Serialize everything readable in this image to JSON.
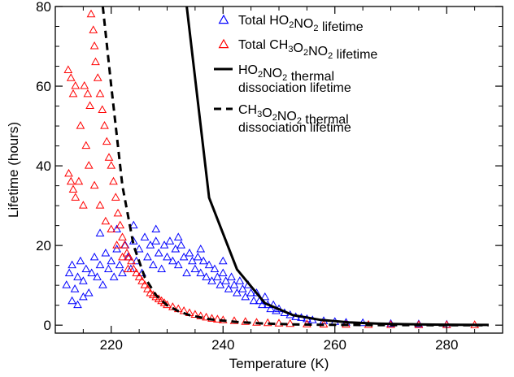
{
  "chart_data": {
    "type": "scatter",
    "xlabel": "Temperature (K)",
    "ylabel": "Lifetime (hours)",
    "xlim": [
      210,
      290
    ],
    "ylim": [
      -2,
      80
    ],
    "xticks": [
      220,
      240,
      260,
      280
    ],
    "yticks": [
      0,
      20,
      40,
      60,
      80
    ],
    "grid": false,
    "legend_position": "top-right",
    "series": [
      {
        "name": "Total HO2NO2 lifetime",
        "legend_parts": [
          [
            "Total HO",
            ""
          ],
          [
            "2",
            "sub"
          ],
          [
            "NO",
            ""
          ],
          [
            "2",
            "sub"
          ],
          [
            " lifetime",
            ""
          ]
        ],
        "kind": "scatter",
        "marker": "triangle",
        "color": "#0000ff",
        "points": [
          [
            212.0,
            10
          ],
          [
            212.5,
            13
          ],
          [
            213.0,
            15
          ],
          [
            213.5,
            9
          ],
          [
            214.0,
            12
          ],
          [
            214.5,
            16
          ],
          [
            215.0,
            11
          ],
          [
            215.5,
            14
          ],
          [
            216.0,
            8
          ],
          [
            216.5,
            13
          ],
          [
            217.0,
            17
          ],
          [
            217.5,
            12
          ],
          [
            218.0,
            15
          ],
          [
            218.5,
            10
          ],
          [
            219.0,
            18
          ],
          [
            219.5,
            14
          ],
          [
            220.0,
            16
          ],
          [
            220.5,
            12
          ],
          [
            221.0,
            19
          ],
          [
            221.5,
            15
          ],
          [
            222.0,
            13
          ],
          [
            222.5,
            20
          ],
          [
            223.0,
            17
          ],
          [
            223.5,
            14
          ],
          [
            224.0,
            21
          ],
          [
            224.5,
            16
          ],
          [
            225.0,
            19
          ],
          [
            225.5,
            13
          ],
          [
            226.0,
            22
          ],
          [
            226.5,
            17
          ],
          [
            227.0,
            20
          ],
          [
            227.5,
            15
          ],
          [
            228.0,
            21
          ],
          [
            228.5,
            18
          ],
          [
            229.0,
            14
          ],
          [
            229.5,
            20
          ],
          [
            230.0,
            17
          ],
          [
            230.5,
            21
          ],
          [
            231.0,
            16
          ],
          [
            231.5,
            19
          ],
          [
            232.0,
            15
          ],
          [
            232.5,
            20
          ],
          [
            233.0,
            17
          ],
          [
            233.5,
            13
          ],
          [
            234.0,
            18
          ],
          [
            234.5,
            16
          ],
          [
            235.0,
            14
          ],
          [
            235.5,
            17
          ],
          [
            236.0,
            13
          ],
          [
            236.5,
            16
          ],
          [
            237.0,
            12
          ],
          [
            237.5,
            15
          ],
          [
            238.0,
            11
          ],
          [
            238.5,
            14
          ],
          [
            239.0,
            12
          ],
          [
            239.5,
            10
          ],
          [
            240.0,
            13
          ],
          [
            240.5,
            11
          ],
          [
            241.0,
            9
          ],
          [
            241.5,
            12
          ],
          [
            242.0,
            10
          ],
          [
            242.5,
            8
          ],
          [
            243.0,
            11
          ],
          [
            243.5,
            9
          ],
          [
            244.0,
            7
          ],
          [
            244.5,
            10
          ],
          [
            245.0,
            8
          ],
          [
            245.5,
            6
          ],
          [
            246.0,
            8
          ],
          [
            246.5,
            6
          ],
          [
            247.0,
            5
          ],
          [
            247.5,
            7
          ],
          [
            248.0,
            5
          ],
          [
            248.5,
            4
          ],
          [
            249.0,
            5
          ],
          [
            249.5,
            3.5
          ],
          [
            250.0,
            4
          ],
          [
            251.0,
            3
          ],
          [
            252.0,
            2.5
          ],
          [
            253.0,
            2
          ],
          [
            254.0,
            1.8
          ],
          [
            255.0,
            1.5
          ],
          [
            256.0,
            1.2
          ],
          [
            258.0,
            1
          ],
          [
            260.0,
            0.8
          ],
          [
            262.0,
            0.6
          ],
          [
            265.0,
            0.5
          ],
          [
            270.0,
            0.3
          ],
          [
            275.0,
            0.2
          ],
          [
            280.0,
            0.1
          ],
          [
            213.0,
            6
          ],
          [
            214.0,
            5
          ],
          [
            215.0,
            7
          ],
          [
            218.0,
            23
          ],
          [
            221.0,
            24
          ],
          [
            224.0,
            25
          ],
          [
            228.0,
            24
          ],
          [
            232.0,
            22
          ],
          [
            236.0,
            19
          ],
          [
            240.0,
            16
          ]
        ]
      },
      {
        "name": "Total CH3O2NO2 lifetime",
        "legend_parts": [
          [
            "Total CH",
            ""
          ],
          [
            "3",
            "sub"
          ],
          [
            "O",
            ""
          ],
          [
            "2",
            "sub"
          ],
          [
            "NO",
            ""
          ],
          [
            "2",
            "sub"
          ],
          [
            " lifetime",
            ""
          ]
        ],
        "kind": "scatter",
        "marker": "triangle",
        "color": "#ff0000",
        "points": [
          [
            212.3,
            64
          ],
          [
            212.8,
            62
          ],
          [
            213.2,
            58
          ],
          [
            213.6,
            60
          ],
          [
            212.4,
            38
          ],
          [
            212.8,
            36
          ],
          [
            213.2,
            34
          ],
          [
            213.6,
            32
          ],
          [
            214.2,
            36
          ],
          [
            215.0,
            30
          ],
          [
            215.2,
            60
          ],
          [
            215.8,
            58
          ],
          [
            216.2,
            55
          ],
          [
            216.4,
            78
          ],
          [
            216.8,
            74
          ],
          [
            217.0,
            70
          ],
          [
            217.2,
            66
          ],
          [
            217.6,
            62
          ],
          [
            218.0,
            58
          ],
          [
            218.4,
            54
          ],
          [
            218.8,
            50
          ],
          [
            219.2,
            46
          ],
          [
            219.6,
            42
          ],
          [
            220.0,
            40
          ],
          [
            220.4,
            36
          ],
          [
            220.8,
            32
          ],
          [
            221.2,
            28
          ],
          [
            221.6,
            25
          ],
          [
            222.0,
            22
          ],
          [
            222.4,
            20
          ],
          [
            222.8,
            18
          ],
          [
            223.2,
            17
          ],
          [
            223.6,
            16
          ],
          [
            224.0,
            14
          ],
          [
            224.5,
            13
          ],
          [
            225.0,
            12
          ],
          [
            225.5,
            11
          ],
          [
            226.0,
            10
          ],
          [
            226.5,
            9
          ],
          [
            227.0,
            8
          ],
          [
            227.5,
            7.5
          ],
          [
            228.0,
            7
          ],
          [
            228.5,
            6.5
          ],
          [
            229.0,
            6
          ],
          [
            229.5,
            5.5
          ],
          [
            230.0,
            5
          ],
          [
            231.0,
            4.5
          ],
          [
            232.0,
            4
          ],
          [
            233.0,
            3.5
          ],
          [
            234.0,
            3
          ],
          [
            235.0,
            2.6
          ],
          [
            236.0,
            2.2
          ],
          [
            237.0,
            1.9
          ],
          [
            238.0,
            1.6
          ],
          [
            239.0,
            1.4
          ],
          [
            240.0,
            1.2
          ],
          [
            242.0,
            1
          ],
          [
            244.0,
            0.8
          ],
          [
            246.0,
            0.6
          ],
          [
            248.0,
            0.5
          ],
          [
            250.0,
            0.4
          ],
          [
            252.0,
            0.3
          ],
          [
            255.0,
            0.2
          ],
          [
            258.0,
            0.15
          ],
          [
            262.0,
            0.1
          ],
          [
            266.0,
            0.05
          ],
          [
            270.0,
            0.03
          ],
          [
            275.0,
            0.02
          ],
          [
            280.0,
            0.01
          ],
          [
            285.0,
            0.0
          ],
          [
            214.5,
            50
          ],
          [
            215.5,
            45
          ],
          [
            216.0,
            40
          ],
          [
            217.0,
            35
          ],
          [
            218.0,
            30
          ],
          [
            219.0,
            26
          ],
          [
            220.0,
            24
          ],
          [
            221.0,
            20
          ],
          [
            222.0,
            17
          ],
          [
            223.0,
            14
          ]
        ]
      },
      {
        "name": "HO2NO2 thermal dissociation lifetime",
        "legend_parts": [
          [
            "HO",
            ""
          ],
          [
            "2",
            "sub"
          ],
          [
            "NO",
            ""
          ],
          [
            "2",
            "sub"
          ],
          [
            " thermal",
            ""
          ]
        ],
        "legend_line2": "dissociation lifetime",
        "kind": "line",
        "style": "solid",
        "color": "#000000",
        "points": [
          [
            233.5,
            80
          ],
          [
            237.5,
            32
          ],
          [
            242.5,
            14
          ],
          [
            247.5,
            5.5
          ],
          [
            252.5,
            2.5
          ],
          [
            257.5,
            1.3
          ],
          [
            262.5,
            0.7
          ],
          [
            267.5,
            0.4
          ],
          [
            272.5,
            0.25
          ],
          [
            277.5,
            0.15
          ],
          [
            282.5,
            0.1
          ],
          [
            287.5,
            0.05
          ]
        ]
      },
      {
        "name": "CH3O2NO2 thermal dissociation lifetime",
        "legend_parts": [
          [
            "CH",
            ""
          ],
          [
            "3",
            "sub"
          ],
          [
            "O",
            ""
          ],
          [
            "2",
            "sub"
          ],
          [
            "NO",
            ""
          ],
          [
            "2",
            "sub"
          ],
          [
            " thermal",
            ""
          ]
        ],
        "legend_line2": "dissociation lifetime",
        "kind": "line",
        "style": "dashed",
        "color": "#000000",
        "points": [
          [
            218.5,
            80
          ],
          [
            220,
            60
          ],
          [
            222,
            35
          ],
          [
            224,
            20
          ],
          [
            226,
            12
          ],
          [
            228,
            7.5
          ],
          [
            230,
            5
          ],
          [
            232,
            3.5
          ],
          [
            234,
            2.5
          ],
          [
            237.5,
            1.5
          ],
          [
            242.5,
            0.8
          ],
          [
            247.5,
            0.4
          ],
          [
            252.5,
            0.2
          ],
          [
            257.5,
            0.1
          ],
          [
            262.5,
            0.05
          ],
          [
            267.5,
            0.02
          ],
          [
            272.5,
            0.01
          ],
          [
            277.5,
            0.0
          ],
          [
            282.5,
            0.0
          ],
          [
            287.5,
            0.0
          ]
        ]
      }
    ]
  }
}
